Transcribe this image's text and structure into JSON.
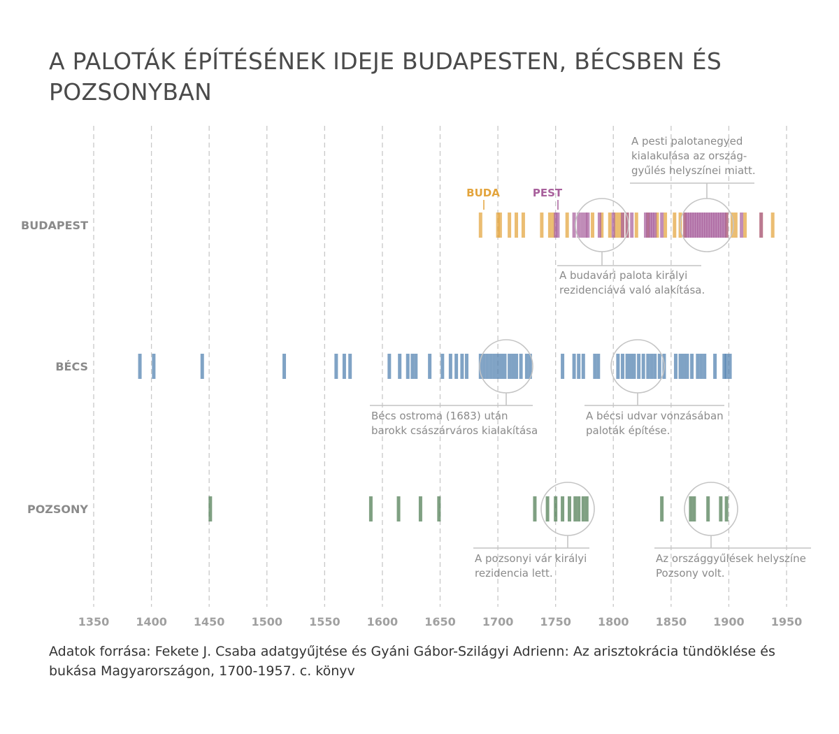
{
  "title": "A PALOTÁK ÉPÍTÉSÉNEK IDEJE BUDAPESTEN, BÉCSBEN ÉS POZSONYBAN",
  "source": "Adatok forrása: Fekete J. Csaba adatgyűjtése és Gyáni Gábor-Szilágyi Adrienn: Az arisztokrácia tündöklése és bukása Magyarországon, 1700-1957. c. könyv",
  "chart_data": {
    "type": "timeline",
    "xlim": [
      1350,
      1950
    ],
    "x_ticks": [
      "1350",
      "1400",
      "1450",
      "1500",
      "1550",
      "1600",
      "1650",
      "1700",
      "1750",
      "1800",
      "1850",
      "1900",
      "1950"
    ],
    "grid": "vertical dashed",
    "colors": {
      "buda": "#e3a43c",
      "pest": "#a8609c",
      "becs": "#4f7fae",
      "pozsony": "#4e7b52"
    },
    "rows": [
      {
        "label": "BUDAPEST",
        "series": [
          {
            "name": "BUDA",
            "color": "#e3a43c",
            "years": [
              1685,
              1700,
              1702,
              1710,
              1716,
              1722,
              1738,
              1745,
              1748,
              1760,
              1782,
              1790,
              1797,
              1802,
              1805,
              1808,
              1812,
              1820,
              1830,
              1838,
              1845,
              1853,
              1858,
              1862,
              1898,
              1903,
              1906,
              1914,
              1928,
              1938
            ]
          },
          {
            "name": "PEST",
            "color": "#a8609c",
            "years": [
              1750,
              1752,
              1766,
              1770,
              1773,
              1776,
              1778,
              1788,
              1800,
              1808,
              1812,
              1816,
              1828,
              1830,
              1832,
              1834,
              1836,
              1842,
              1862,
              1864,
              1866,
              1868,
              1870,
              1872,
              1874,
              1876,
              1878,
              1880,
              1882,
              1884,
              1886,
              1888,
              1890,
              1892,
              1894,
              1896,
              1898,
              1911,
              1928
            ]
          }
        ],
        "annotations": [
          {
            "text_lines": [
              "A budavári palota királyi",
              "rezidenciává való alakítása."
            ]
          },
          {
            "text_lines": [
              "A pesti palotanegyed",
              "kialakulása az ország-",
              "gyűlés helyszínei miatt."
            ]
          }
        ]
      },
      {
        "label": "BÉCS",
        "series": [
          {
            "name": "Bécs",
            "color": "#4f7fae",
            "years": [
              1390,
              1402,
              1444,
              1515,
              1560,
              1567,
              1572,
              1606,
              1615,
              1622,
              1626,
              1629,
              1641,
              1652,
              1659,
              1664,
              1669,
              1673,
              1685,
              1688,
              1691,
              1694,
              1697,
              1700,
              1703,
              1706,
              1710,
              1713,
              1716,
              1720,
              1725,
              1728,
              1756,
              1766,
              1770,
              1774,
              1784,
              1787,
              1804,
              1808,
              1812,
              1815,
              1818,
              1822,
              1826,
              1830,
              1833,
              1836,
              1840,
              1844,
              1854,
              1858,
              1861,
              1864,
              1868,
              1873,
              1876,
              1879,
              1888,
              1896,
              1898,
              1901
            ]
          }
        ],
        "annotations": [
          {
            "text_lines": [
              "Bécs ostroma (1683) után",
              "barokk császárváros kialakítása"
            ]
          },
          {
            "text_lines": [
              "A bécsi udvar vonzásában",
              "paloták építése."
            ]
          }
        ]
      },
      {
        "label": "POZSONY",
        "series": [
          {
            "name": "Pozsony",
            "color": "#4e7b52",
            "years": [
              1451,
              1590,
              1614,
              1633,
              1649,
              1732,
              1743,
              1750,
              1756,
              1762,
              1767,
              1770,
              1774,
              1777,
              1842,
              1867,
              1870,
              1882,
              1893,
              1898
            ]
          }
        ],
        "annotations": [
          {
            "text_lines": [
              "A pozsonyi vár királyi",
              "rezidencia lett."
            ]
          },
          {
            "text_lines": [
              "Az országgyűlések helyszíne",
              "Pozsony volt."
            ]
          }
        ]
      }
    ]
  }
}
